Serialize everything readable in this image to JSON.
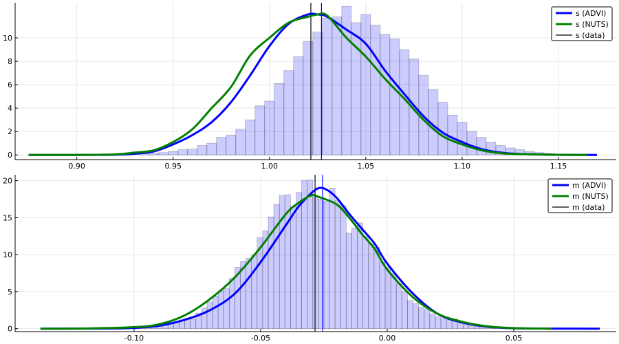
{
  "chart_data": [
    {
      "type": "histogram+line",
      "title": "",
      "xlabel": "",
      "ylabel": "",
      "xlim": [
        0.868,
        1.18
      ],
      "ylim": [
        -0.4,
        13.0
      ],
      "grid": true,
      "legend_position": "top-right",
      "x_ticks": [
        0.9,
        0.95,
        1.0,
        1.05,
        1.1,
        1.15
      ],
      "x_tick_labels": [
        "0.90",
        "0.95",
        "1.00",
        "1.05",
        "1.10",
        "1.15"
      ],
      "y_ticks": [
        0,
        2,
        4,
        6,
        8,
        10
      ],
      "y_tick_labels": [
        "0",
        "2",
        "4",
        "6",
        "8",
        "10"
      ],
      "histogram": {
        "bin_edges_start": 0.9325,
        "bin_width": 0.005,
        "counts": [
          0.1,
          0.15,
          0.2,
          0.3,
          0.45,
          0.5,
          0.8,
          1.0,
          1.5,
          1.7,
          2.2,
          3.0,
          4.2,
          4.6,
          6.1,
          7.2,
          8.4,
          9.7,
          10.5,
          11.7,
          11.8,
          12.7,
          11.3,
          12.0,
          11.1,
          10.3,
          9.9,
          9.0,
          8.2,
          6.8,
          5.6,
          4.5,
          3.4,
          2.8,
          2.0,
          1.5,
          1.1,
          0.8,
          0.6,
          0.45,
          0.3,
          0.2,
          0.12,
          0.08,
          0.05
        ],
        "color": "#0000ff"
      },
      "series": [
        {
          "name": "s (ADVI)",
          "color": "#0000ff",
          "x": [
            0.875,
            0.9,
            0.92,
            0.93,
            0.94,
            0.95,
            0.96,
            0.97,
            0.98,
            0.99,
            1.0,
            1.01,
            1.02,
            1.025,
            1.03,
            1.04,
            1.05,
            1.06,
            1.07,
            1.08,
            1.09,
            1.1,
            1.11,
            1.12,
            1.13,
            1.15,
            1.17
          ],
          "y": [
            0,
            0,
            0.02,
            0.1,
            0.3,
            0.9,
            1.7,
            2.8,
            4.5,
            6.8,
            9.3,
            11.2,
            12.0,
            12.0,
            11.8,
            10.7,
            9.5,
            7.2,
            5.2,
            3.3,
            1.9,
            1.1,
            0.5,
            0.2,
            0.08,
            0.01,
            0
          ]
        },
        {
          "name": "s (NUTS)",
          "color": "#008000",
          "x": [
            0.875,
            0.9,
            0.92,
            0.93,
            0.94,
            0.95,
            0.96,
            0.97,
            0.98,
            0.99,
            1.0,
            1.01,
            1.02,
            1.025,
            1.03,
            1.04,
            1.05,
            1.06,
            1.07,
            1.08,
            1.09,
            1.1,
            1.11,
            1.12,
            1.13,
            1.15,
            1.165
          ],
          "y": [
            0,
            0,
            0.05,
            0.2,
            0.4,
            1.1,
            2.2,
            4.0,
            5.8,
            8.5,
            10.0,
            11.3,
            11.8,
            12.0,
            11.9,
            10.0,
            8.4,
            6.5,
            4.8,
            3.0,
            1.6,
            0.9,
            0.4,
            0.15,
            0.08,
            0.01,
            0
          ]
        }
      ],
      "vlines": [
        {
          "name": "s (data)",
          "x": 1.0215,
          "color": "#000000"
        },
        {
          "x": 1.027,
          "color": "#0000ff"
        }
      ]
    },
    {
      "type": "histogram+line",
      "title": "",
      "xlabel": "",
      "ylabel": "",
      "xlim": [
        -0.147,
        0.0905
      ],
      "ylim": [
        -0.4,
        20.8
      ],
      "grid": true,
      "legend_position": "top-right",
      "x_ticks": [
        -0.1,
        -0.05,
        0.0,
        0.05
      ],
      "x_tick_labels": [
        "-0.10",
        "-0.05",
        "0.00",
        "0.05"
      ],
      "y_ticks": [
        0,
        5,
        10,
        15,
        20
      ],
      "y_tick_labels": [
        "0",
        "5",
        "10",
        "15",
        "20"
      ],
      "histogram": {
        "bin_edges_start": -0.102,
        "bin_width": 0.0022,
        "counts": [
          0.05,
          0.08,
          0.1,
          0.15,
          0.2,
          0.3,
          0.5,
          0.7,
          0.9,
          1.2,
          1.4,
          1.3,
          2.1,
          2.8,
          3.6,
          4.4,
          5.1,
          5.4,
          6.8,
          8.3,
          9.1,
          9.5,
          10.0,
          12.3,
          13.2,
          15.1,
          16.8,
          18.0,
          18.1,
          16.5,
          18.4,
          20.0,
          20.1,
          17.8,
          17.5,
          17.2,
          19.0,
          17.3,
          16.6,
          12.9,
          13.6,
          14.3,
          12.5,
          11.5,
          11.0,
          9.0,
          8.3,
          7.5,
          6.1,
          5.0,
          3.8,
          3.4,
          2.9,
          2.6,
          2.0,
          1.6,
          1.4,
          1.2,
          1.3,
          0.7,
          0.6,
          0.4,
          0.3,
          0.2,
          0.1,
          0.05
        ],
        "color": "#0000ff"
      },
      "series": [
        {
          "name": "m (ADVI)",
          "color": "#0000ff",
          "x": [
            -0.137,
            -0.11,
            -0.1,
            -0.09,
            -0.08,
            -0.07,
            -0.06,
            -0.05,
            -0.04,
            -0.035,
            -0.03,
            -0.027,
            -0.024,
            -0.02,
            -0.015,
            -0.01,
            -0.005,
            0.0,
            0.01,
            0.02,
            0.03,
            0.04,
            0.05,
            0.065,
            0.084
          ],
          "y": [
            0,
            0.02,
            0.1,
            0.4,
            1.2,
            2.5,
            4.8,
            9.0,
            14.0,
            16.5,
            18.3,
            19.0,
            18.8,
            17.7,
            15.5,
            13.5,
            11.5,
            8.8,
            4.8,
            2.0,
            0.8,
            0.25,
            0.05,
            0.01,
            0
          ]
        },
        {
          "name": "m (NUTS)",
          "color": "#008000",
          "x": [
            -0.137,
            -0.12,
            -0.1,
            -0.09,
            -0.08,
            -0.07,
            -0.06,
            -0.05,
            -0.04,
            -0.035,
            -0.03,
            -0.027,
            -0.02,
            -0.015,
            -0.01,
            -0.005,
            0.0,
            0.01,
            0.02,
            0.03,
            0.04,
            0.05,
            0.065
          ],
          "y": [
            0,
            0.02,
            0.2,
            0.6,
            1.8,
            4.0,
            7.0,
            11.0,
            15.5,
            17.0,
            18.0,
            17.8,
            16.8,
            15.0,
            12.8,
            10.8,
            8.0,
            4.3,
            2.0,
            0.9,
            0.3,
            0.08,
            0
          ]
        }
      ],
      "vlines": [
        {
          "name": "m (data)",
          "x": -0.0285,
          "color": "#000000"
        },
        {
          "x": -0.0255,
          "color": "#0000ff"
        }
      ]
    }
  ]
}
